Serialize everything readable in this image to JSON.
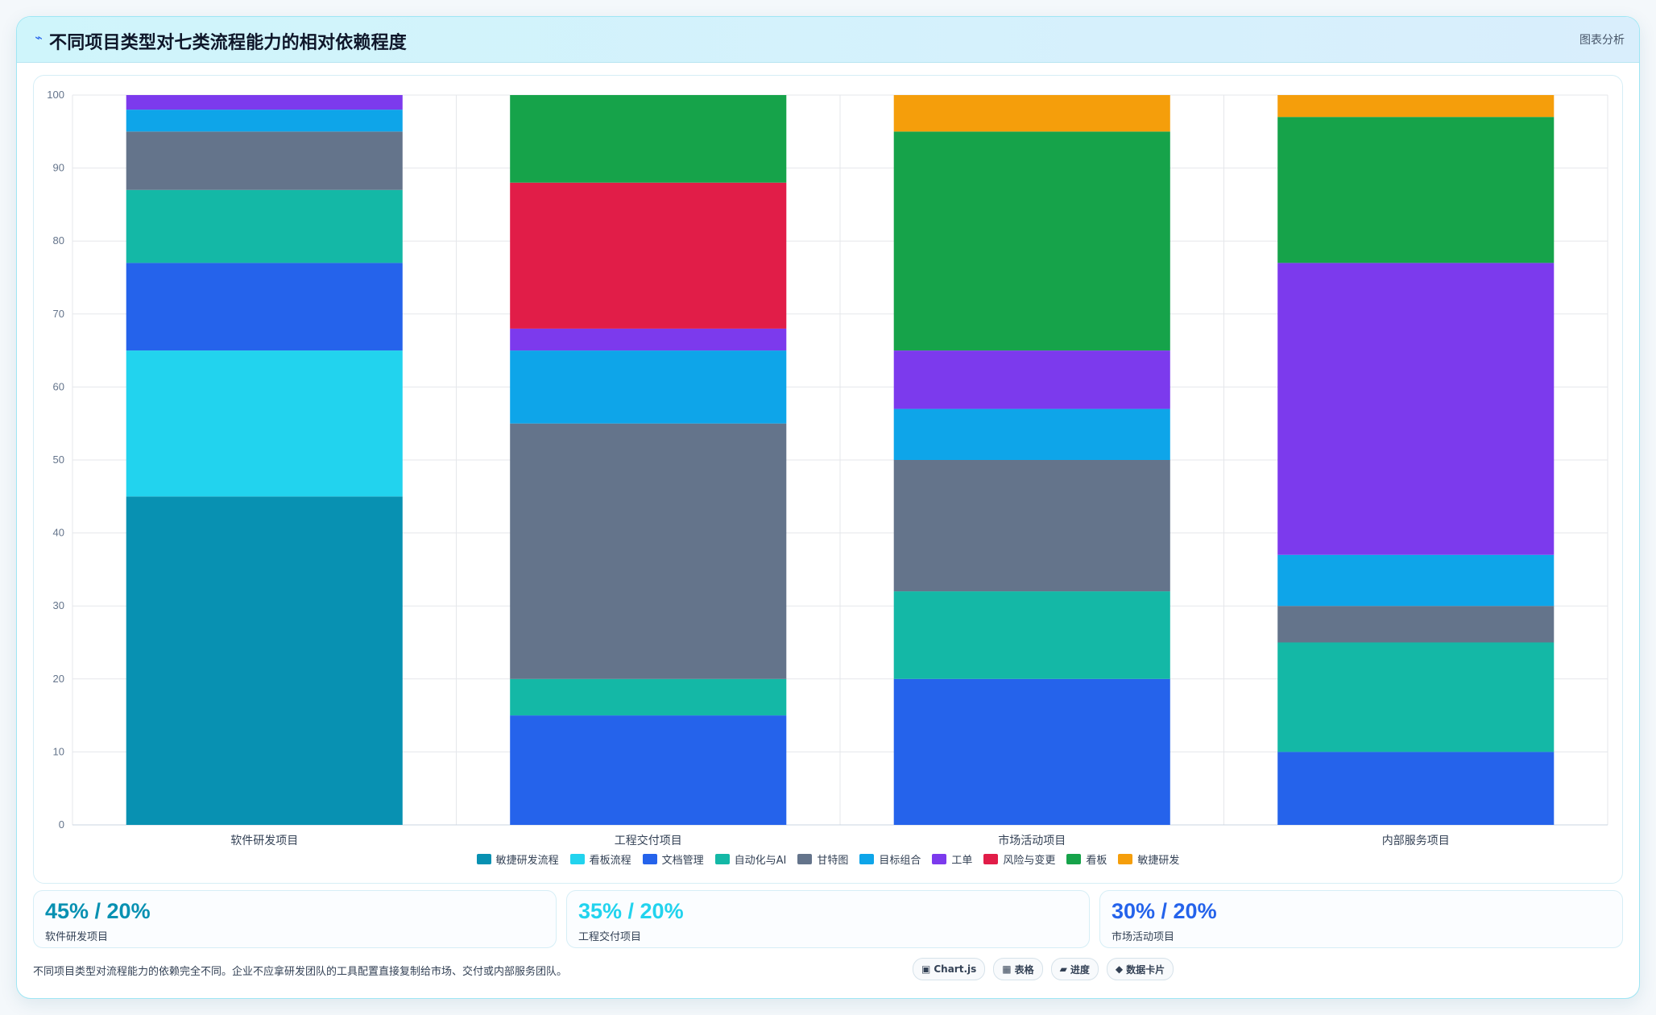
{
  "header": {
    "icon": "chart-icon",
    "title": "不同项目类型对七类流程能力的相对依赖程度",
    "action": "图表分析"
  },
  "chart_data": {
    "type": "bar",
    "stacked": true,
    "title": "",
    "xlabel": "",
    "ylabel": "",
    "ylim": [
      0,
      100
    ],
    "yticks": [
      0,
      10,
      20,
      30,
      40,
      50,
      60,
      70,
      80,
      90,
      100
    ],
    "grid": true,
    "legend_position": "bottom",
    "categories": [
      "软件研发项目",
      "工程交付项目",
      "市场活动项目",
      "内部服务项目"
    ],
    "series": [
      {
        "name": "敏捷研发流程",
        "color": "#0891b2",
        "values": [
          45,
          0,
          0,
          0
        ]
      },
      {
        "name": "看板流程",
        "color": "#22d3ee",
        "values": [
          20,
          0,
          0,
          0
        ]
      },
      {
        "name": "文档管理",
        "color": "#2563eb",
        "values": [
          12,
          15,
          20,
          10
        ]
      },
      {
        "name": "自动化与AI",
        "color": "#14b8a6",
        "values": [
          10,
          5,
          12,
          15
        ]
      },
      {
        "name": "甘特图",
        "color": "#64748b",
        "values": [
          8,
          35,
          18,
          5
        ]
      },
      {
        "name": "目标组合",
        "color": "#0ea5e9",
        "values": [
          3,
          10,
          7,
          7
        ]
      },
      {
        "name": "工单",
        "color": "#7c3aed",
        "values": [
          2,
          3,
          8,
          40
        ]
      },
      {
        "name": "风险与变更",
        "color": "#e11d48",
        "values": [
          0,
          20,
          0,
          0
        ]
      },
      {
        "name": "看板",
        "color": "#16a34a",
        "values": [
          0,
          12,
          30,
          20
        ]
      },
      {
        "name": "敏捷研发",
        "color": "#f59e0b",
        "values": [
          0,
          0,
          5,
          3
        ]
      }
    ]
  },
  "stat_cards": [
    {
      "value": "45% / 20%",
      "label": "软件研发项目",
      "color": "#0891b2"
    },
    {
      "value": "35% / 20%",
      "label": "工程交付项目",
      "color": "#22d3ee"
    },
    {
      "value": "30% / 20%",
      "label": "市场活动项目",
      "color": "#2563eb"
    }
  ],
  "footer": {
    "note": "不同项目类型对流程能力的依赖完全不同。企业不应拿研发团队的工具配置直接复制给市场、交付或内部服务团队。",
    "tags": [
      {
        "icon": "▣",
        "label": "Chart.js"
      },
      {
        "icon": "▦",
        "label": "表格"
      },
      {
        "icon": "▰",
        "label": "进度"
      },
      {
        "icon": "◆",
        "label": "数据卡片"
      }
    ]
  }
}
